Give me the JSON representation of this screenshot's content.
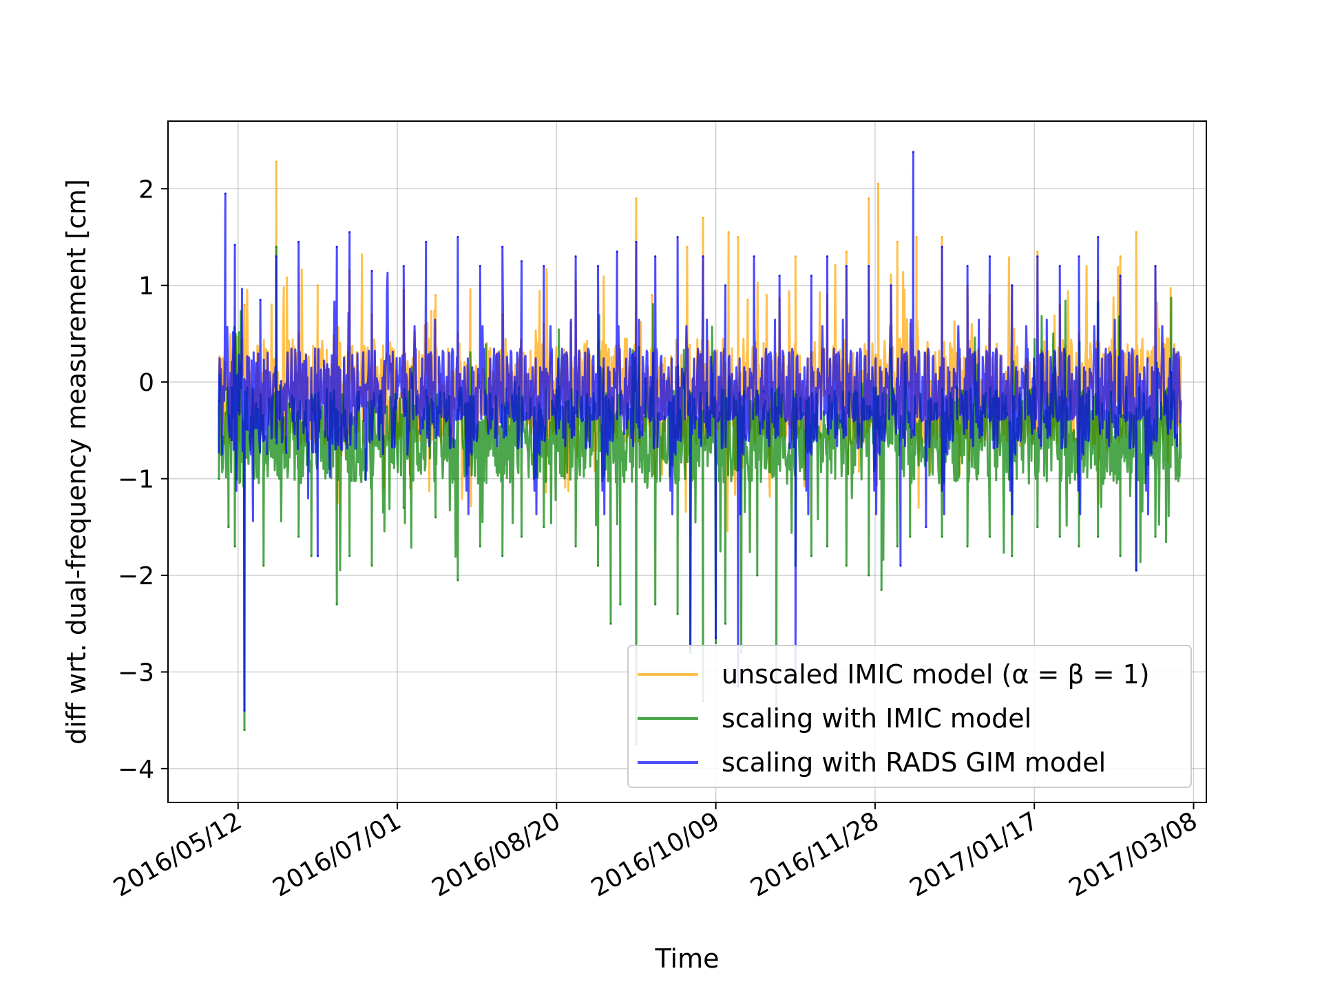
{
  "chart_data": {
    "type": "line",
    "title": "",
    "xlabel": "Time",
    "ylabel": "diff wrt. dual-frequency measurement [cm]",
    "x_range": [
      "2016-04-20",
      "2017-03-12"
    ],
    "ylim": [
      -4.35,
      2.7
    ],
    "grid": true,
    "legend_position": "lower-right",
    "x_ticks": [
      {
        "date": "2016-05-12",
        "label": "2016/05/12"
      },
      {
        "date": "2016-07-01",
        "label": "2016/07/01"
      },
      {
        "date": "2016-08-20",
        "label": "2016/08/20"
      },
      {
        "date": "2016-10-09",
        "label": "2016/10/09"
      },
      {
        "date": "2016-11-28",
        "label": "2016/11/28"
      },
      {
        "date": "2017-01-17",
        "label": "2017/01/17"
      },
      {
        "date": "2017-03-08",
        "label": "2017/03/08"
      }
    ],
    "y_ticks": [
      {
        "value": 2,
        "label": "2"
      },
      {
        "value": 1,
        "label": "1"
      },
      {
        "value": 0,
        "label": "0"
      },
      {
        "value": -1,
        "label": "−1"
      },
      {
        "value": -2,
        "label": "−2"
      },
      {
        "value": -3,
        "label": "−3"
      },
      {
        "value": -4,
        "label": "−4"
      }
    ],
    "series": [
      {
        "name": "unscaled IMIC model (α = β = 1)",
        "color": "#ffa500",
        "opacity": 0.7,
        "x": [
          "2016-05-06",
          "2016-05-09",
          "2016-05-14",
          "2016-05-20",
          "2016-05-24",
          "2016-05-26",
          "2016-05-31",
          "2016-06-06",
          "2016-06-12",
          "2016-06-16",
          "2016-06-23",
          "2016-07-03",
          "2016-07-07",
          "2016-07-13",
          "2016-07-20",
          "2016-07-27",
          "2016-08-03",
          "2016-08-09",
          "2016-08-16",
          "2016-08-26",
          "2016-09-02",
          "2016-09-08",
          "2016-09-14",
          "2016-09-19",
          "2016-09-23",
          "2016-09-30",
          "2016-10-05",
          "2016-10-08",
          "2016-10-13",
          "2016-10-16",
          "2016-10-19",
          "2016-10-24",
          "2016-10-29",
          "2016-11-03",
          "2016-11-08",
          "2016-11-13",
          "2016-11-19",
          "2016-11-26",
          "2016-11-29",
          "2016-12-05",
          "2016-12-09",
          "2016-12-11",
          "2016-12-19",
          "2016-12-27",
          "2017-01-03",
          "2017-01-10",
          "2017-01-18",
          "2017-01-25",
          "2017-01-31",
          "2017-02-06",
          "2017-02-13",
          "2017-02-18",
          "2017-02-24",
          "2017-03-01"
        ],
        "y": [
          0.1,
          -0.5,
          0.8,
          -0.6,
          2.28,
          -0.4,
          0.5,
          1.0,
          -0.3,
          1.15,
          0.7,
          0.95,
          -0.2,
          0.9,
          0.5,
          -0.1,
          0.7,
          -0.4,
          0.6,
          1.05,
          0.4,
          -0.3,
          1.9,
          0.9,
          -0.5,
          1.4,
          1.7,
          0.3,
          1.55,
          1.5,
          0.85,
          0.4,
          0.85,
          1.3,
          0.2,
          0.9,
          1.35,
          1.9,
          2.05,
          1.45,
          0.6,
          1.5,
          1.5,
          1.0,
          0.9,
          1.0,
          1.35,
          0.8,
          0.5,
          1.05,
          1.3,
          1.55,
          1.2,
          0.1
        ]
      },
      {
        "name": "scaling with IMIC model",
        "color": "#008000",
        "opacity": 0.7,
        "x": [
          "2016-05-06",
          "2016-05-09",
          "2016-05-11",
          "2016-05-14",
          "2016-05-20",
          "2016-05-24",
          "2016-05-31",
          "2016-06-04",
          "2016-06-12",
          "2016-06-16",
          "2016-06-23",
          "2016-07-03",
          "2016-07-13",
          "2016-07-20",
          "2016-07-27",
          "2016-08-03",
          "2016-08-09",
          "2016-08-16",
          "2016-08-26",
          "2016-09-02",
          "2016-09-06",
          "2016-09-09",
          "2016-09-14",
          "2016-09-20",
          "2016-09-27",
          "2016-10-01",
          "2016-10-05",
          "2016-10-09",
          "2016-10-12",
          "2016-10-17",
          "2016-10-22",
          "2016-10-28",
          "2016-11-03",
          "2016-11-08",
          "2016-11-13",
          "2016-11-19",
          "2016-11-26",
          "2016-11-30",
          "2016-12-05",
          "2016-12-09",
          "2016-12-19",
          "2016-12-27",
          "2017-01-03",
          "2017-01-10",
          "2017-01-18",
          "2017-01-25",
          "2017-01-31",
          "2017-02-06",
          "2017-02-13",
          "2017-02-18",
          "2017-02-24",
          "2017-03-01"
        ],
        "y": [
          -1.0,
          -1.5,
          -1.7,
          -3.6,
          -1.9,
          1.4,
          -1.6,
          -1.8,
          -2.3,
          -1.8,
          -1.9,
          -1.3,
          -1.4,
          -2.05,
          -1.7,
          -1.8,
          -1.6,
          -1.5,
          -1.7,
          -1.9,
          -2.5,
          -2.3,
          -3.75,
          -2.3,
          -2.4,
          -2.8,
          -3.3,
          -2.7,
          -2.5,
          -2.8,
          -2.0,
          -3.4,
          -1.9,
          -1.8,
          -1.7,
          -1.9,
          -2.0,
          -2.15,
          -1.7,
          -1.6,
          -1.6,
          -1.7,
          -1.6,
          -1.8,
          -1.5,
          -1.6,
          -1.7,
          -1.6,
          -1.8,
          -1.95,
          -1.6,
          -0.25
        ]
      },
      {
        "name": "scaling with RADS GIM model",
        "color": "#0000ff",
        "opacity": 0.7,
        "x": [
          "2016-05-06",
          "2016-05-08",
          "2016-05-10",
          "2016-05-11",
          "2016-05-14",
          "2016-05-19",
          "2016-05-24",
          "2016-05-31",
          "2016-06-06",
          "2016-06-12",
          "2016-06-16",
          "2016-06-23",
          "2016-07-03",
          "2016-07-10",
          "2016-07-20",
          "2016-07-27",
          "2016-08-03",
          "2016-08-09",
          "2016-08-16",
          "2016-08-26",
          "2016-09-02",
          "2016-09-08",
          "2016-09-14",
          "2016-09-20",
          "2016-09-27",
          "2016-10-01",
          "2016-10-05",
          "2016-10-09",
          "2016-10-12",
          "2016-10-16",
          "2016-10-21",
          "2016-10-24",
          "2016-10-29",
          "2016-11-03",
          "2016-11-08",
          "2016-11-13",
          "2016-11-19",
          "2016-11-26",
          "2016-12-03",
          "2016-12-06",
          "2016-12-10",
          "2016-12-14",
          "2016-12-19",
          "2016-12-27",
          "2017-01-03",
          "2017-01-10",
          "2017-01-18",
          "2017-01-25",
          "2017-01-31",
          "2017-02-06",
          "2017-02-13",
          "2017-02-18",
          "2017-02-24",
          "2017-03-01"
        ],
        "y": [
          -0.2,
          1.95,
          -0.6,
          1.42,
          -3.4,
          0.85,
          1.3,
          1.45,
          -1.8,
          1.4,
          1.55,
          1.15,
          1.2,
          1.45,
          1.5,
          1.2,
          1.4,
          1.25,
          1.2,
          1.3,
          1.2,
          1.35,
          1.45,
          1.3,
          1.5,
          -2.75,
          1.3,
          -2.65,
          1.0,
          -3.15,
          1.3,
          -0.1,
          1.1,
          -3.0,
          1.1,
          1.3,
          1.2,
          1.2,
          1.0,
          -1.9,
          2.38,
          -1.5,
          1.4,
          1.2,
          1.3,
          1.0,
          1.3,
          1.2,
          1.3,
          1.5,
          1.1,
          -1.95,
          1.2,
          0.1
        ]
      }
    ]
  }
}
